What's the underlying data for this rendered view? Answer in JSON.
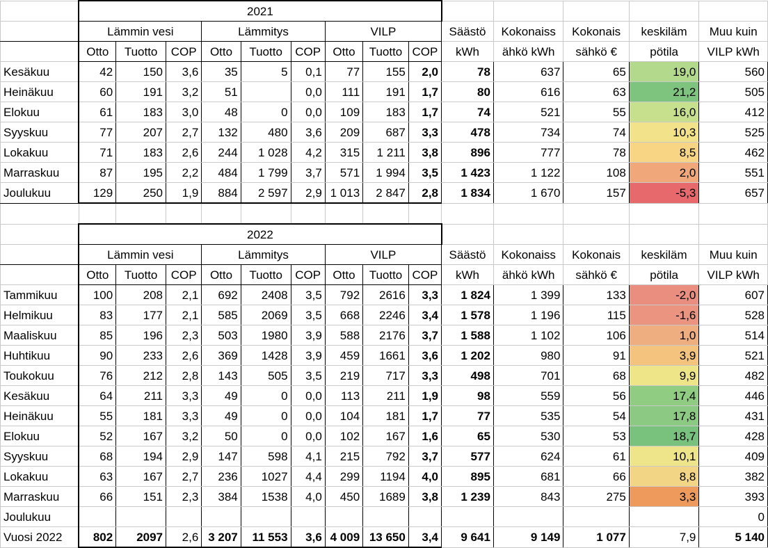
{
  "y2021": {
    "year": "2021",
    "groups": [
      "Lämmin vesi",
      "Lämmitys",
      "VILP"
    ],
    "sub": [
      "Otto",
      "Tuotto",
      "COP",
      "Otto",
      "Tuotto",
      "COP",
      "Otto",
      "Tuotto",
      "COP"
    ],
    "extra_h1": [
      "Säästö",
      "Kokonaiss",
      "Kokonais",
      "keskiläm",
      "Muu kuin"
    ],
    "extra_h2": [
      "kWh",
      "ähkö kWh",
      "sähkö €",
      "pötila",
      "VILP kWh"
    ],
    "rows": [
      {
        "m": "Kesäkuu",
        "c": [
          "42",
          "150",
          "3,6",
          "35",
          "5",
          "0,1",
          "77",
          "155",
          "2,0",
          "78",
          "637",
          "65",
          "19,0",
          "560"
        ],
        "t": "#b3d98c"
      },
      {
        "m": "Heinäkuu",
        "c": [
          "60",
          "191",
          "3,2",
          "51",
          "",
          "0,0",
          "111",
          "191",
          "1,7",
          "80",
          "616",
          "63",
          "21,2",
          "505"
        ],
        "t": "#7ec47f"
      },
      {
        "m": "Elokuu",
        "c": [
          "61",
          "183",
          "3,0",
          "48",
          "0",
          "0,0",
          "109",
          "183",
          "1,7",
          "74",
          "521",
          "55",
          "16,0",
          "412"
        ],
        "t": "#c7e08e"
      },
      {
        "m": "Syyskuu",
        "c": [
          "77",
          "207",
          "2,7",
          "132",
          "480",
          "3,6",
          "209",
          "687",
          "3,3",
          "478",
          "734",
          "74",
          "10,3",
          "525"
        ],
        "t": "#f2e28a"
      },
      {
        "m": "Lokakuu",
        "c": [
          "71",
          "183",
          "2,6",
          "244",
          "1 028",
          "4,2",
          "315",
          "1 211",
          "3,8",
          "896",
          "777",
          "78",
          "8,5",
          "462"
        ],
        "t": "#f7d584"
      },
      {
        "m": "Marraskuu",
        "c": [
          "87",
          "195",
          "2,2",
          "484",
          "1 799",
          "3,7",
          "571",
          "1 994",
          "3,5",
          "1 423",
          "1 122",
          "108",
          "2,0",
          "551"
        ],
        "t": "#f0a77a"
      },
      {
        "m": "Joulukuu",
        "c": [
          "129",
          "250",
          "1,9",
          "884",
          "2 597",
          "2,9",
          "1 013",
          "2 847",
          "2,8",
          "1 834",
          "1 670",
          "157",
          "-5,3",
          "657"
        ],
        "t": "#e8696b"
      }
    ]
  },
  "y2022": {
    "year": "2022",
    "groups": [
      "Lämmin vesi",
      "Lämmitys",
      "VILP"
    ],
    "sub": [
      "Otto",
      "Tuotto",
      "COP",
      "Otto",
      "Tuotto",
      "COP",
      "Otto",
      "Tuotto",
      "COP"
    ],
    "extra_h1": [
      "Säästö",
      "Kokonaiss",
      "Kokonais",
      "keskiläm",
      "Muu kuin"
    ],
    "extra_h2": [
      "kWh",
      "ähkö kWh",
      "sähkö €",
      "pötila",
      "VILP kWh"
    ],
    "rows": [
      {
        "m": "Tammikuu",
        "c": [
          "100",
          "208",
          "2,1",
          "692",
          "2408",
          "3,5",
          "792",
          "2616",
          "3,3",
          "1 824",
          "1 399",
          "133",
          "-2,0",
          "607"
        ],
        "t": "#ea8e7f"
      },
      {
        "m": "Helmikuu",
        "c": [
          "83",
          "177",
          "2,1",
          "585",
          "2069",
          "3,5",
          "668",
          "2246",
          "3,4",
          "1 578",
          "1 196",
          "115",
          "-1,6",
          "528"
        ],
        "t": "#eb9580"
      },
      {
        "m": "Maaliskuu",
        "c": [
          "85",
          "196",
          "2,3",
          "503",
          "1980",
          "3,9",
          "588",
          "2176",
          "3,7",
          "1 588",
          "1 102",
          "106",
          "1,0",
          "514"
        ],
        "t": "#efae7f"
      },
      {
        "m": "Huhtikuu",
        "c": [
          "90",
          "233",
          "2,6",
          "369",
          "1428",
          "3,9",
          "459",
          "1661",
          "3,6",
          "1 202",
          "980",
          "91",
          "3,9",
          "521"
        ],
        "t": "#f4c47f"
      },
      {
        "m": "Toukokuu",
        "c": [
          "76",
          "212",
          "2,8",
          "143",
          "505",
          "3,5",
          "219",
          "717",
          "3,3",
          "498",
          "701",
          "68",
          "9,9",
          "482"
        ],
        "t": "#eee488"
      },
      {
        "m": "Kesäkuu",
        "c": [
          "64",
          "211",
          "3,3",
          "49",
          "0",
          "0,0",
          "113",
          "211",
          "1,9",
          "98",
          "559",
          "56",
          "17,4",
          "446"
        ],
        "t": "#91cc83"
      },
      {
        "m": "Heinäkuu",
        "c": [
          "55",
          "181",
          "3,3",
          "49",
          "0",
          "0,0",
          "104",
          "181",
          "1,7",
          "77",
          "535",
          "54",
          "17,8",
          "431"
        ],
        "t": "#8cc982"
      },
      {
        "m": "Elokuu",
        "c": [
          "52",
          "167",
          "3,2",
          "50",
          "0",
          "0,0",
          "102",
          "167",
          "1,6",
          "65",
          "530",
          "53",
          "18,7",
          "428"
        ],
        "t": "#79c27e"
      },
      {
        "m": "Syyskuu",
        "c": [
          "68",
          "194",
          "2,9",
          "147",
          "598",
          "4,1",
          "215",
          "792",
          "3,7",
          "577",
          "624",
          "61",
          "10,1",
          "409"
        ],
        "t": "#eee489"
      },
      {
        "m": "Lokakuu",
        "c": [
          "63",
          "167",
          "2,7",
          "236",
          "1027",
          "4,4",
          "299",
          "1194",
          "4,0",
          "895",
          "681",
          "66",
          "8,8",
          "382"
        ],
        "t": "#f2d685"
      },
      {
        "m": "Marraskuu",
        "c": [
          "66",
          "151",
          "2,3",
          "384",
          "1538",
          "4,0",
          "450",
          "1689",
          "3,8",
          "1 239",
          "843",
          "275",
          "3,3",
          "393"
        ],
        "t": "#ed9a5c"
      },
      {
        "m": "Joulukuu",
        "c": [
          "",
          "",
          "",
          "",
          "",
          "",
          "",
          "",
          "",
          "",
          "",
          "",
          "",
          "0"
        ],
        "t": ""
      }
    ],
    "total": {
      "m": "Vuosi 2022",
      "c": [
        "802",
        "2097",
        "2,6",
        "3 207",
        "11 553",
        "3,6",
        "4 009",
        "13 650",
        "3,4",
        "9 641",
        "9 149",
        "1 077",
        "7,9",
        "5 140"
      ]
    }
  }
}
